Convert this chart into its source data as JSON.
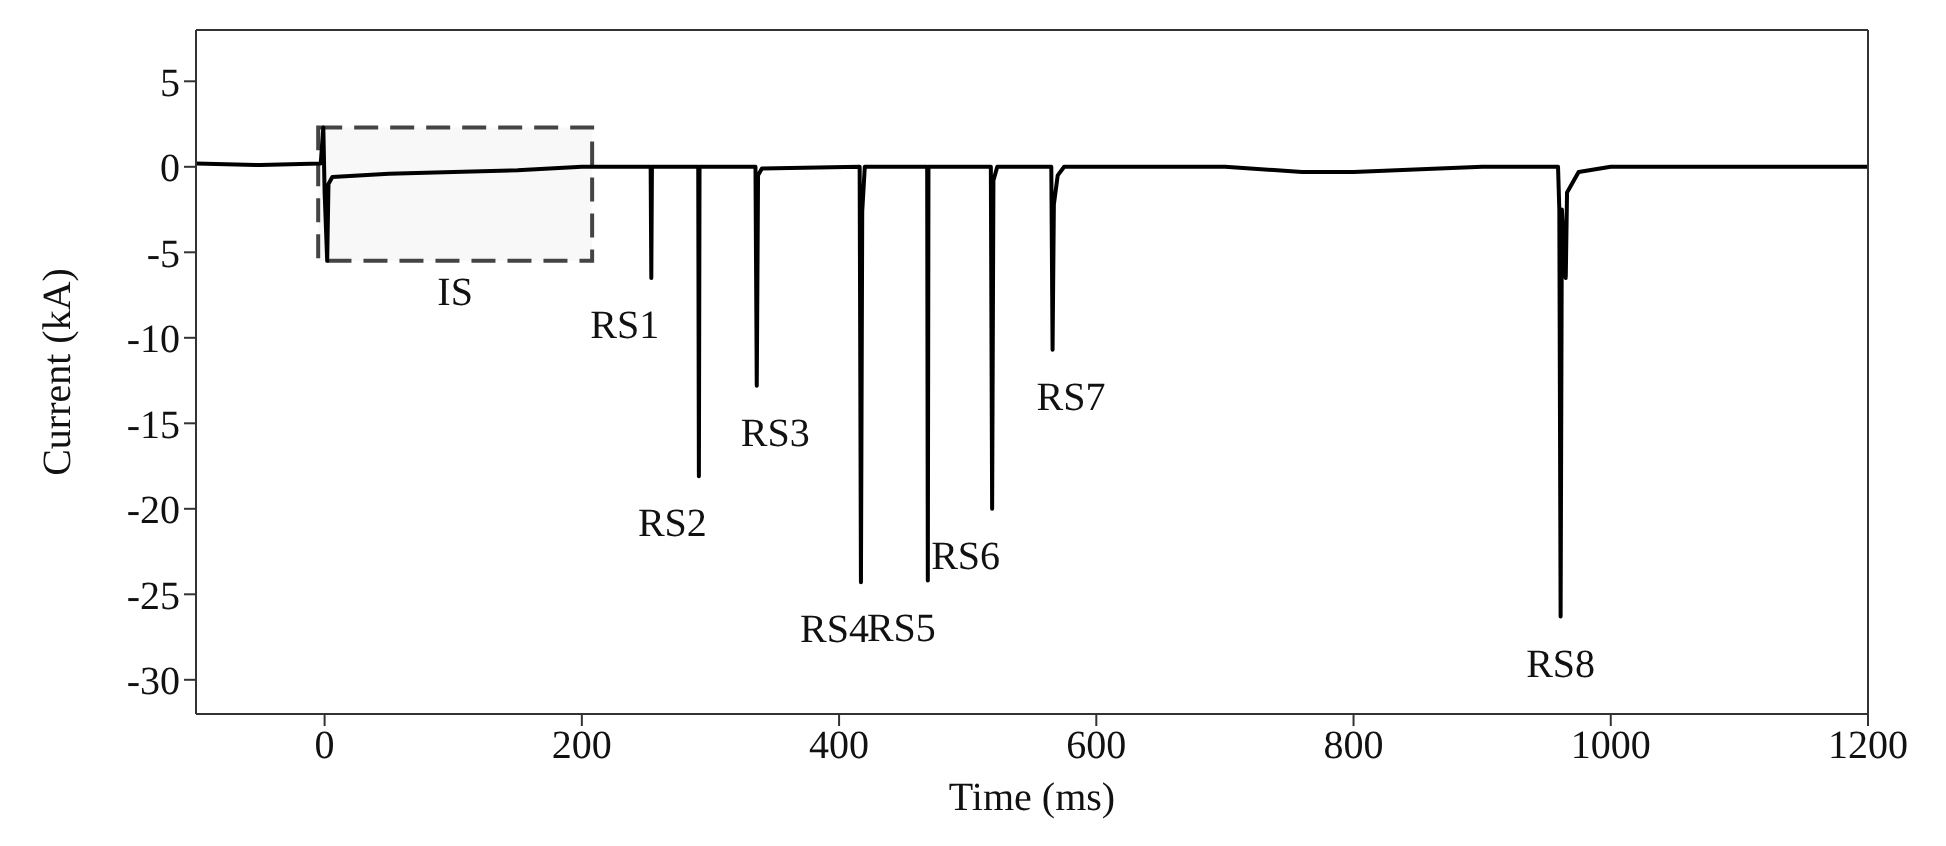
{
  "chart_data": {
    "type": "line",
    "xlabel": "Time (ms)",
    "ylabel": "Current (kA)",
    "x": [
      -100,
      -50,
      -3,
      -1,
      0,
      2,
      3,
      6,
      50,
      100,
      150,
      200,
      253.5,
      254,
      254.5,
      290.5,
      291,
      291.5,
      335,
      336,
      337,
      340,
      416,
      417,
      418,
      420,
      468.5,
      469,
      469.5,
      518,
      519,
      520,
      523,
      565,
      566,
      567,
      570,
      575,
      700,
      760,
      800,
      900,
      959,
      960,
      961,
      962,
      965,
      966,
      975,
      1000,
      1100,
      1200
    ],
    "series": [
      {
        "color": "#000000",
        "values": [
          0.2,
          0.1,
          0.2,
          2.3,
          -1.5,
          -5.5,
          -1,
          -0.6,
          -0.4,
          -0.3,
          -0.2,
          0,
          0,
          -6.5,
          0,
          0,
          -18.1,
          0,
          0,
          -12.8,
          -0.5,
          -0.1,
          0,
          -24.3,
          -2.6,
          0,
          0,
          -24.2,
          0,
          0,
          -20,
          -0.8,
          0,
          0,
          -10.7,
          -2.2,
          -0.5,
          0,
          0,
          -0.3,
          -0.3,
          0,
          0,
          -2.5,
          -26.3,
          -2.5,
          -6.5,
          -1.5,
          -0.3,
          0,
          0,
          0
        ]
      }
    ],
    "xlim": [
      -100,
      1200
    ],
    "xticks": [
      0,
      200,
      400,
      600,
      800,
      1000,
      1200
    ],
    "ylim": [
      -32,
      8
    ],
    "yticks": [
      5,
      0,
      -5,
      -10,
      -15,
      -20,
      -25,
      -30
    ],
    "bands": [
      {
        "axis": "x",
        "from": -5,
        "to": 208,
        "label": "IS",
        "color": "#e8e8e8"
      }
    ],
    "annotations": [
      {
        "text": "RS1",
        "x": 254,
        "y": -6.5
      },
      {
        "text": "RS2",
        "x": 291,
        "y": -18.1
      },
      {
        "text": "RS3",
        "x": 336,
        "y": -12.8
      },
      {
        "text": "RS4",
        "x": 417,
        "y": -24.3
      },
      {
        "text": "RS5",
        "x": 469,
        "y": -24.2
      },
      {
        "text": "RS6",
        "x": 519,
        "y": -20
      },
      {
        "text": "RS7",
        "x": 566,
        "y": -10.7
      },
      {
        "text": "RS8",
        "x": 961,
        "y": -26.3
      }
    ],
    "grid": false,
    "marker": "none",
    "line_style": "solid"
  }
}
